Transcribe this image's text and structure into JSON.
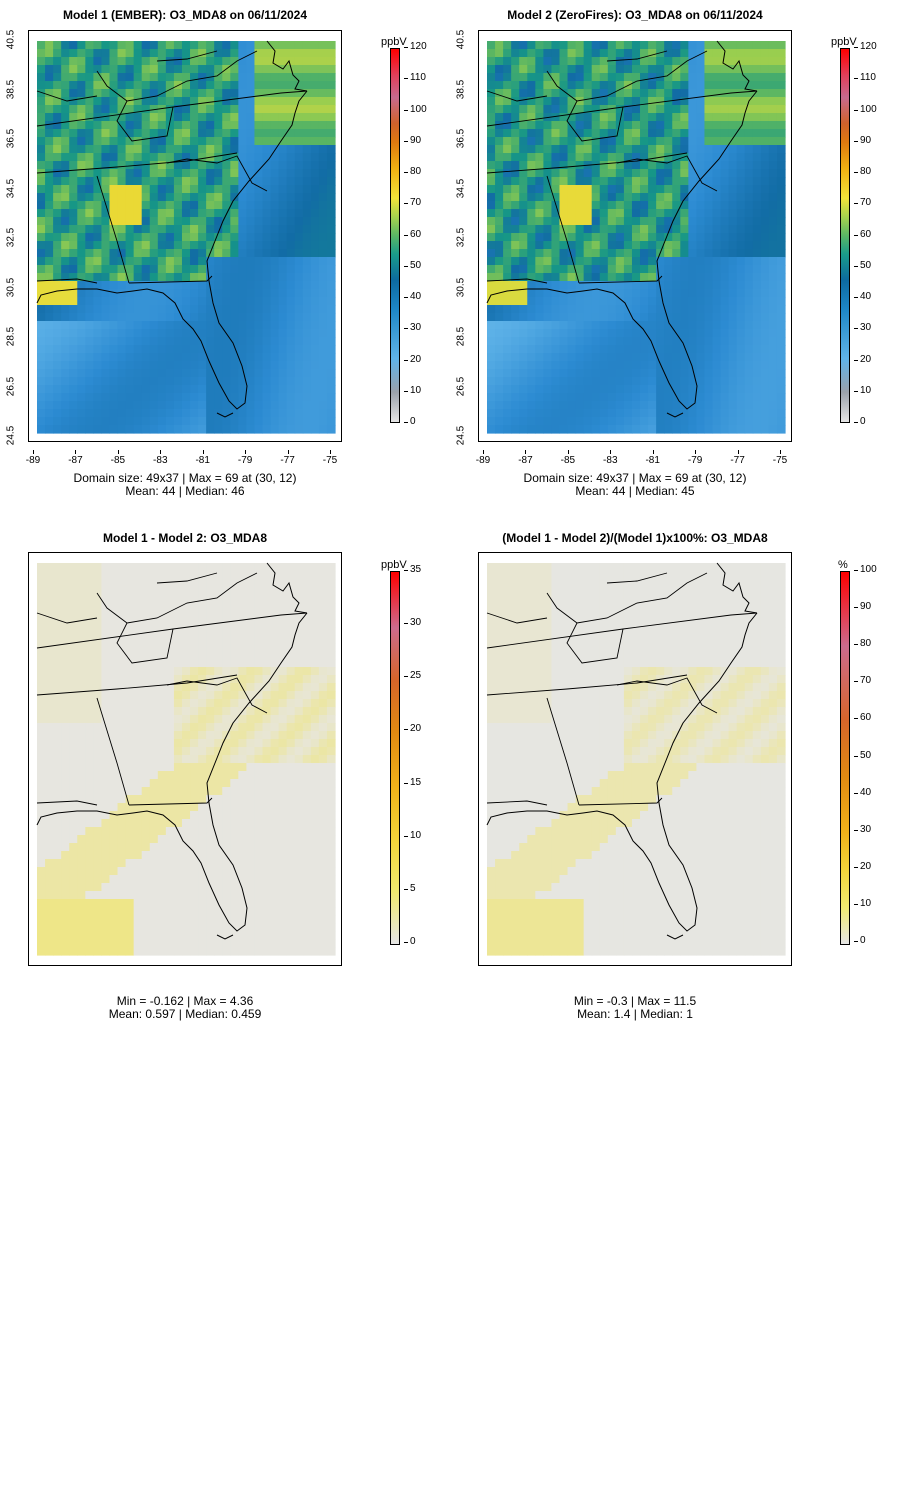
{
  "colors": {
    "gray_missing": "#e6e6e6",
    "map_line": "#000000"
  },
  "panels": [
    {
      "id": "p1",
      "title": "Model 1 (EMBER): O3_MDA8 on 06/11/2024",
      "stats_line1": "Domain size: 49x37 | Max = 69 at (30, 12)",
      "stats_line2": "Mean: 44 |  Median: 46",
      "unit": "ppbV",
      "colorbar_ticks": [
        "120",
        "110",
        "100",
        "90",
        "80",
        "70",
        "60",
        "50",
        "40",
        "30",
        "20",
        "10",
        "0"
      ],
      "x_ticks": [
        "-89",
        "-87",
        "-85",
        "-83",
        "-81",
        "-79",
        "-77",
        "-75"
      ],
      "y_ticks": [
        "40.5",
        "38.5",
        "36.5",
        "34.5",
        "32.5",
        "30.5",
        "28.5",
        "26.5",
        "24.5"
      ]
    },
    {
      "id": "p2",
      "title": "Model 2 (ZeroFires): O3_MDA8 on 06/11/2024",
      "stats_line1": "Domain size: 49x37 | Max = 69 at (30, 12)",
      "stats_line2": "Mean: 44 |  Median: 45",
      "unit": "ppbV",
      "colorbar_ticks": [
        "120",
        "110",
        "100",
        "90",
        "80",
        "70",
        "60",
        "50",
        "40",
        "30",
        "20",
        "10",
        "0"
      ],
      "x_ticks": [
        "-89",
        "-87",
        "-85",
        "-83",
        "-81",
        "-79",
        "-77",
        "-75"
      ],
      "y_ticks": [
        "40.5",
        "38.5",
        "36.5",
        "34.5",
        "32.5",
        "30.5",
        "28.5",
        "26.5",
        "24.5"
      ]
    },
    {
      "id": "p3",
      "title": "Model 1 - Model 2: O3_MDA8",
      "stats_line1": "Min = -0.162 | Max = 4.36",
      "stats_line2": "Mean: 0.597 |  Median: 0.459",
      "unit": "ppbV",
      "colorbar_ticks": [
        "35",
        "30",
        "25",
        "20",
        "15",
        "10",
        "5",
        "0"
      ]
    },
    {
      "id": "p4",
      "title": "(Model 1 - Model 2)/(Model 1)x100%: O3_MDA8",
      "stats_line1": "Min = -0.3 | Max = 11.5",
      "stats_line2": "Mean: 1.4 |  Median: 1",
      "unit": "%",
      "colorbar_ticks": [
        "100",
        "90",
        "80",
        "70",
        "60",
        "50",
        "40",
        "30",
        "20",
        "10",
        "0"
      ]
    }
  ]
}
